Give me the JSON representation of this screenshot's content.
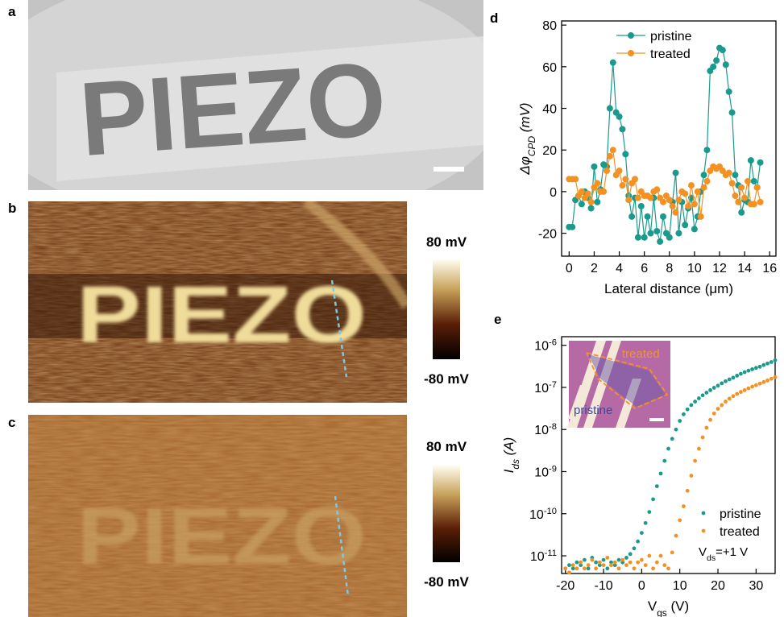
{
  "panels": [
    {
      "label": "a",
      "image_text": "PIEZO"
    },
    {
      "label": "b",
      "image_text": "PIEZO",
      "colorbar": [
        "80 mV",
        "-80 mV"
      ]
    },
    {
      "label": "c",
      "image_text": "PIEZO",
      "colorbar": [
        "80 mV",
        "-80 mV"
      ]
    }
  ],
  "chart_data": [
    {
      "label": "d",
      "type": "line",
      "markers": true,
      "x_label": "Lateral distance (μm)",
      "y_label": "Δφ_{CPD} (mV)",
      "xlim": [
        -0.6,
        16.5
      ],
      "xticks": [
        0,
        2,
        4,
        6,
        8,
        10,
        12,
        14,
        16
      ],
      "ylim": [
        -31,
        82
      ],
      "yticks": [
        -20,
        0,
        20,
        40,
        60,
        80
      ],
      "legend": "upper left",
      "x": [
        0,
        0.25,
        0.5,
        0.75,
        1,
        1.25,
        1.5,
        1.75,
        2,
        2.25,
        2.5,
        2.75,
        3,
        3.25,
        3.5,
        3.75,
        4,
        4.25,
        4.5,
        4.75,
        5,
        5.25,
        5.5,
        5.75,
        6,
        6.25,
        6.5,
        6.75,
        7,
        7.25,
        7.5,
        7.75,
        8,
        8.25,
        8.5,
        8.75,
        9,
        9.25,
        9.5,
        9.75,
        10,
        10.25,
        10.5,
        10.75,
        11,
        11.25,
        11.5,
        11.75,
        12,
        12.25,
        12.5,
        12.75,
        13,
        13.25,
        13.5,
        13.75,
        14,
        14.25,
        14.5,
        14.75,
        15,
        15.25
      ],
      "series": [
        {
          "name": "pristine",
          "color": "#1a9a8c",
          "values": [
            -17,
            -17,
            -4,
            -2,
            -6,
            0,
            -3,
            -8,
            12,
            -5,
            1,
            13,
            12,
            40,
            62,
            38,
            36,
            30,
            18,
            -2,
            -12,
            -3,
            -22,
            -7,
            -22,
            -12,
            -20,
            -3,
            -19,
            -24,
            -12,
            -20,
            -22,
            -5,
            9,
            -20,
            -5,
            -16,
            -8,
            -3,
            -18,
            -12,
            0,
            8,
            20,
            58,
            60,
            63,
            69,
            68,
            61,
            48,
            38,
            8,
            3,
            -10,
            -4,
            -5,
            15,
            5,
            2,
            14
          ]
        },
        {
          "name": "treated",
          "color": "#f39223",
          "values": [
            6,
            6,
            6,
            -2,
            0,
            -3,
            -1,
            -5,
            2,
            4,
            0,
            0,
            10,
            17,
            20,
            8,
            10,
            3,
            6,
            -4,
            4,
            6,
            -3,
            0,
            -2,
            -2,
            -3,
            0,
            1,
            -3,
            -5,
            -2,
            -4,
            -7,
            -10,
            -4,
            0,
            -1,
            -7,
            3,
            -6,
            0,
            -12,
            2,
            5,
            10,
            12,
            11,
            12,
            10,
            8,
            9,
            4,
            -2,
            -5,
            2,
            -3,
            5,
            -6,
            -6,
            2,
            -5
          ]
        }
      ]
    },
    {
      "label": "e",
      "type": "scatter",
      "log_y": true,
      "x_label": "V_{gs} (V)",
      "y_label": "I_{ds} (A)",
      "xlim": [
        -21,
        35
      ],
      "xticks": [
        -20,
        -10,
        0,
        10,
        20,
        30
      ],
      "ylim": [
        3.8e-12,
        1.6e-06
      ],
      "yticks": [
        {
          "value": 1e-11,
          "label": "10^{-11}"
        },
        {
          "value": 1e-10,
          "label": "10^{-10}"
        },
        {
          "value": 1e-09,
          "label": "10^{-9}"
        },
        {
          "value": 1e-08,
          "label": "10^{-8}"
        },
        {
          "value": 1e-07,
          "label": "10^{-7}"
        },
        {
          "value": 1e-06,
          "label": "10^{-6}"
        }
      ],
      "legend": "lower right",
      "annotation": "V_{ds}=+1 V",
      "inset_labels": [
        "treated",
        "pristine"
      ],
      "x": [
        -20,
        -19,
        -18,
        -17,
        -16,
        -15,
        -14,
        -13,
        -12,
        -11,
        -10,
        -9,
        -8,
        -7,
        -6,
        -5,
        -4,
        -3,
        -2,
        -1,
        0,
        1,
        2,
        3,
        4,
        5,
        6,
        7,
        8,
        9,
        10,
        11,
        12,
        13,
        14,
        15,
        16,
        17,
        18,
        19,
        20,
        21,
        22,
        23,
        24,
        25,
        26,
        27,
        28,
        29,
        30,
        31,
        32,
        33,
        34,
        35
      ],
      "series": [
        {
          "name": "pristine",
          "color": "#1a9a8c",
          "values": [
            5e-12,
            6e-12,
            5e-12,
            7e-12,
            6e-12,
            8e-12,
            5e-12,
            9e-12,
            7e-12,
            6e-12,
            8e-12,
            5e-12,
            7e-12,
            6e-12,
            8e-12,
            7e-12,
            9e-12,
            1.1e-11,
            1.5e-11,
            2.2e-11,
            3.5e-11,
            6e-11,
            1.1e-10,
            2.2e-10,
            4.5e-10,
            9e-10,
            1.8e-09,
            3.5e-09,
            6e-09,
            1e-08,
            1.6e-08,
            2.3e-08,
            3e-08,
            3.8e-08,
            4.6e-08,
            5.5e-08,
            6.5e-08,
            7.5e-08,
            8.6e-08,
            9.8e-08,
            1.1e-07,
            1.25e-07,
            1.4e-07,
            1.55e-07,
            1.7e-07,
            1.9e-07,
            2.1e-07,
            2.3e-07,
            2.5e-07,
            2.7e-07,
            2.9e-07,
            3.1e-07,
            3.4e-07,
            3.7e-07,
            4e-07,
            4.4e-07
          ]
        },
        {
          "name": "treated",
          "color": "#f39223",
          "values": [
            5e-12,
            4e-12,
            6e-12,
            5e-12,
            7e-12,
            5e-12,
            6e-12,
            8e-12,
            5e-12,
            7e-12,
            6e-12,
            9e-12,
            6e-12,
            7e-12,
            5e-12,
            8e-12,
            6e-12,
            7e-12,
            5e-12,
            7e-12,
            8e-12,
            6e-12,
            1e-11,
            5e-12,
            7e-12,
            1e-11,
            6e-12,
            5e-12,
            1.2e-11,
            3e-11,
            7e-11,
            1.5e-10,
            3.5e-10,
            8e-10,
            1.8e-09,
            3.5e-09,
            6.5e-09,
            1.1e-08,
            1.7e-08,
            2.4e-08,
            3.1e-08,
            3.8e-08,
            4.6e-08,
            5.4e-08,
            6.2e-08,
            7e-08,
            7.8e-08,
            8.6e-08,
            9.5e-08,
            1.04e-07,
            1.13e-07,
            1.23e-07,
            1.34e-07,
            1.46e-07,
            1.6e-07,
            1.75e-07
          ]
        }
      ]
    }
  ]
}
